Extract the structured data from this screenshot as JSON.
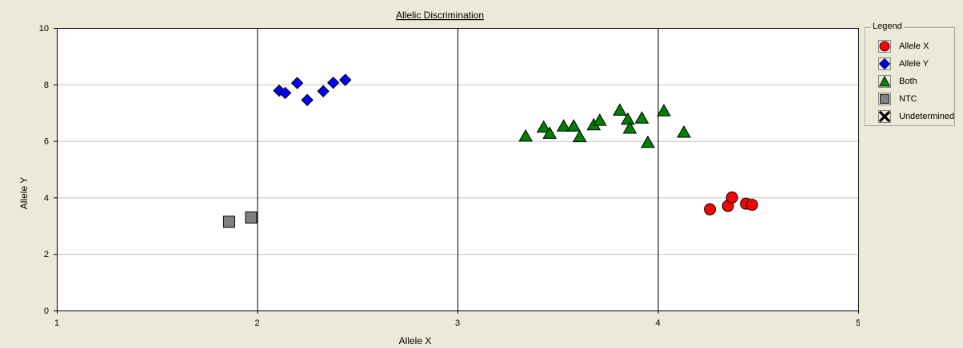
{
  "chart_data": {
    "type": "scatter",
    "title": "Allelic Discrimination",
    "xlabel": "Allele X",
    "ylabel": "Allele Y",
    "xlim": [
      1,
      5
    ],
    "ylim": [
      0,
      10
    ],
    "x_ticks": [
      1,
      2,
      3,
      4,
      5
    ],
    "y_ticks": [
      0,
      2,
      4,
      6,
      8,
      10
    ],
    "grid": "horizontal gridlines at y ticks; vertical lines at x = 2, 3, 4",
    "legend_placement": "right",
    "series": [
      {
        "name": "Allele X",
        "marker": "circle",
        "color": "#ff0000",
        "points": [
          [
            4.26,
            3.58
          ],
          [
            4.35,
            3.7
          ],
          [
            4.37,
            4.0
          ],
          [
            4.44,
            3.78
          ],
          [
            4.47,
            3.74
          ]
        ]
      },
      {
        "name": "Allele Y",
        "marker": "diamond",
        "color": "#0000ff",
        "points": [
          [
            2.11,
            7.78
          ],
          [
            2.14,
            7.7
          ],
          [
            2.2,
            8.05
          ],
          [
            2.25,
            7.45
          ],
          [
            2.33,
            7.76
          ],
          [
            2.38,
            8.06
          ],
          [
            2.44,
            8.16
          ]
        ]
      },
      {
        "name": "Both",
        "marker": "triangle",
        "color": "#008000",
        "points": [
          [
            3.34,
            6.16
          ],
          [
            3.43,
            6.48
          ],
          [
            3.46,
            6.26
          ],
          [
            3.53,
            6.52
          ],
          [
            3.58,
            6.52
          ],
          [
            3.61,
            6.14
          ],
          [
            3.68,
            6.56
          ],
          [
            3.71,
            6.72
          ],
          [
            3.81,
            7.08
          ],
          [
            3.85,
            6.76
          ],
          [
            3.86,
            6.44
          ],
          [
            3.92,
            6.8
          ],
          [
            3.95,
            5.94
          ],
          [
            4.03,
            7.06
          ],
          [
            4.13,
            6.3
          ]
        ]
      },
      {
        "name": "NTC",
        "marker": "square",
        "color": "#808080",
        "points": [
          [
            1.86,
            3.14
          ],
          [
            1.97,
            3.29
          ]
        ]
      },
      {
        "name": "Undetermined",
        "marker": "x",
        "color": "#000000",
        "points": []
      }
    ]
  },
  "legend": {
    "title": "Legend"
  }
}
